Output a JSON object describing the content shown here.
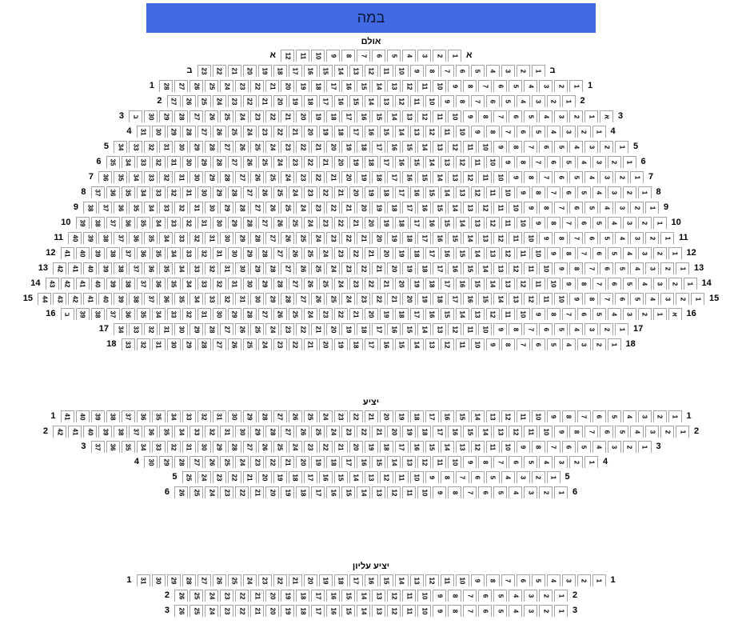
{
  "stage": {
    "label": "במה"
  },
  "colors": {
    "stage_bg": "#4169e1",
    "stage_text": "#0a1838",
    "seat_border": "#a3a3a3"
  },
  "sections": [
    {
      "title": "אולם",
      "rows": [
        {
          "label": "א",
          "seats": [
            12,
            11,
            10,
            9,
            8,
            7,
            6,
            5,
            4,
            3,
            2,
            1
          ]
        },
        {
          "label": "ב",
          "seats": [
            23,
            22,
            21,
            20,
            19,
            18,
            17,
            16,
            15,
            14,
            13,
            12,
            11,
            10,
            9,
            8,
            7,
            6,
            5,
            4,
            3,
            2,
            1
          ]
        },
        {
          "label": "1",
          "seats": [
            28,
            27,
            26,
            25,
            24,
            23,
            22,
            21,
            20,
            19,
            18,
            17,
            16,
            15,
            14,
            13,
            12,
            11,
            10,
            9,
            8,
            7,
            6,
            5,
            4,
            3,
            2,
            1
          ]
        },
        {
          "label": "2",
          "seats": [
            27,
            26,
            25,
            24,
            23,
            22,
            21,
            20,
            19,
            18,
            17,
            16,
            15,
            14,
            13,
            12,
            11,
            10,
            9,
            8,
            7,
            6,
            5,
            4,
            3,
            2,
            1
          ]
        },
        {
          "label": "3",
          "seats": [
            "ב",
            30,
            29,
            28,
            27,
            26,
            25,
            24,
            23,
            22,
            21,
            20,
            19,
            18,
            17,
            16,
            15,
            14,
            13,
            12,
            11,
            10,
            9,
            8,
            7,
            6,
            5,
            4,
            3,
            2,
            1,
            "א"
          ]
        },
        {
          "label": "4",
          "seats": [
            31,
            30,
            29,
            28,
            27,
            26,
            25,
            24,
            23,
            22,
            21,
            20,
            19,
            18,
            17,
            16,
            15,
            14,
            13,
            12,
            11,
            10,
            9,
            8,
            7,
            6,
            5,
            4,
            3,
            2,
            1
          ]
        },
        {
          "label": "5",
          "seats": [
            34,
            33,
            32,
            31,
            30,
            29,
            28,
            27,
            26,
            25,
            24,
            23,
            22,
            21,
            20,
            19,
            18,
            17,
            16,
            15,
            14,
            13,
            12,
            11,
            10,
            9,
            8,
            7,
            6,
            5,
            4,
            3,
            2,
            1
          ]
        },
        {
          "label": "6",
          "seats": [
            35,
            34,
            33,
            32,
            31,
            30,
            29,
            28,
            27,
            26,
            25,
            24,
            23,
            22,
            21,
            20,
            19,
            18,
            17,
            16,
            15,
            14,
            13,
            12,
            11,
            10,
            9,
            8,
            7,
            6,
            5,
            4,
            3,
            2,
            1
          ]
        },
        {
          "label": "7",
          "seats": [
            36,
            35,
            34,
            33,
            32,
            31,
            30,
            29,
            28,
            27,
            26,
            25,
            24,
            23,
            22,
            21,
            20,
            19,
            18,
            17,
            16,
            15,
            14,
            13,
            12,
            11,
            10,
            9,
            8,
            7,
            6,
            5,
            4,
            3,
            2,
            1
          ]
        },
        {
          "label": "8",
          "seats": [
            37,
            36,
            35,
            34,
            33,
            32,
            31,
            30,
            29,
            28,
            27,
            26,
            25,
            24,
            23,
            22,
            21,
            20,
            19,
            18,
            17,
            16,
            15,
            14,
            13,
            12,
            11,
            10,
            9,
            8,
            7,
            6,
            5,
            4,
            3,
            2,
            1
          ]
        },
        {
          "label": "9",
          "seats": [
            38,
            37,
            36,
            35,
            34,
            33,
            32,
            31,
            30,
            29,
            28,
            27,
            26,
            25,
            24,
            23,
            22,
            21,
            20,
            19,
            18,
            17,
            16,
            15,
            14,
            13,
            12,
            11,
            10,
            9,
            8,
            7,
            6,
            5,
            4,
            3,
            2,
            1
          ]
        },
        {
          "label": "10",
          "seats": [
            39,
            38,
            37,
            36,
            35,
            34,
            33,
            32,
            31,
            30,
            29,
            28,
            27,
            26,
            25,
            24,
            23,
            22,
            21,
            20,
            19,
            18,
            17,
            16,
            15,
            14,
            13,
            12,
            11,
            10,
            9,
            8,
            7,
            6,
            5,
            4,
            3,
            2,
            1
          ]
        },
        {
          "label": "11",
          "seats": [
            40,
            39,
            38,
            37,
            36,
            35,
            34,
            33,
            32,
            31,
            30,
            29,
            28,
            27,
            26,
            25,
            24,
            23,
            22,
            21,
            20,
            19,
            18,
            17,
            16,
            15,
            14,
            13,
            12,
            11,
            10,
            9,
            8,
            7,
            6,
            5,
            4,
            3,
            2,
            1
          ]
        },
        {
          "label": "12",
          "seats": [
            41,
            40,
            39,
            38,
            37,
            36,
            35,
            34,
            33,
            32,
            31,
            30,
            29,
            28,
            27,
            26,
            25,
            24,
            23,
            22,
            21,
            20,
            19,
            18,
            17,
            16,
            15,
            14,
            13,
            12,
            11,
            10,
            9,
            8,
            7,
            6,
            5,
            4,
            3,
            2,
            1
          ]
        },
        {
          "label": "13",
          "seats": [
            42,
            41,
            40,
            39,
            38,
            37,
            36,
            35,
            34,
            33,
            32,
            31,
            30,
            29,
            28,
            27,
            26,
            25,
            24,
            23,
            22,
            21,
            20,
            19,
            18,
            17,
            16,
            15,
            14,
            13,
            12,
            11,
            10,
            9,
            8,
            7,
            6,
            5,
            4,
            3,
            2,
            1
          ]
        },
        {
          "label": "14",
          "seats": [
            43,
            42,
            41,
            40,
            39,
            38,
            37,
            36,
            35,
            34,
            33,
            32,
            31,
            30,
            29,
            28,
            27,
            26,
            25,
            24,
            23,
            22,
            21,
            20,
            19,
            18,
            17,
            16,
            15,
            14,
            13,
            12,
            11,
            10,
            9,
            8,
            7,
            6,
            5,
            4,
            3,
            2,
            1
          ]
        },
        {
          "label": "15",
          "seats": [
            44,
            43,
            42,
            41,
            40,
            39,
            38,
            37,
            36,
            35,
            34,
            33,
            32,
            31,
            30,
            29,
            28,
            27,
            26,
            25,
            24,
            23,
            22,
            21,
            20,
            19,
            18,
            17,
            16,
            15,
            14,
            13,
            12,
            11,
            10,
            9,
            8,
            7,
            6,
            5,
            4,
            3,
            2,
            1
          ]
        },
        {
          "label": "16",
          "seats": [
            "ב",
            39,
            38,
            37,
            36,
            35,
            34,
            33,
            32,
            31,
            30,
            29,
            28,
            27,
            26,
            25,
            24,
            23,
            22,
            21,
            20,
            19,
            18,
            17,
            16,
            15,
            14,
            13,
            12,
            11,
            10,
            9,
            8,
            7,
            6,
            5,
            4,
            3,
            2,
            1,
            "א"
          ]
        },
        {
          "label": "17",
          "seats": [
            34,
            33,
            32,
            31,
            30,
            29,
            28,
            27,
            26,
            25,
            24,
            23,
            22,
            21,
            20,
            19,
            18,
            17,
            16,
            15,
            14,
            13,
            12,
            11,
            10,
            9,
            8,
            7,
            6,
            5,
            4,
            3,
            2,
            1
          ]
        },
        {
          "label": "18",
          "seats": [
            33,
            32,
            31,
            30,
            29,
            28,
            27,
            26,
            25,
            24,
            23,
            22,
            21,
            20,
            19,
            18,
            17,
            16,
            15,
            14,
            13,
            12,
            11,
            10,
            9,
            8,
            7,
            6,
            5,
            4,
            3,
            2,
            1
          ]
        }
      ]
    },
    {
      "title": "יציע",
      "rows": [
        {
          "label": "1",
          "seats": [
            41,
            40,
            39,
            38,
            37,
            36,
            35,
            34,
            33,
            32,
            31,
            30,
            29,
            28,
            27,
            26,
            25,
            24,
            23,
            22,
            21,
            20,
            19,
            18,
            17,
            16,
            15,
            14,
            13,
            12,
            11,
            10,
            9,
            8,
            7,
            6,
            5,
            4,
            3,
            2,
            1
          ]
        },
        {
          "label": "2",
          "seats": [
            42,
            41,
            40,
            39,
            38,
            37,
            36,
            35,
            34,
            33,
            32,
            31,
            30,
            29,
            28,
            27,
            26,
            25,
            24,
            23,
            22,
            21,
            20,
            19,
            18,
            17,
            16,
            15,
            14,
            13,
            12,
            11,
            10,
            9,
            8,
            7,
            6,
            5,
            4,
            3,
            2,
            1
          ]
        },
        {
          "label": "3",
          "seats": [
            37,
            36,
            35,
            34,
            33,
            32,
            31,
            30,
            29,
            28,
            27,
            26,
            25,
            24,
            23,
            22,
            21,
            20,
            19,
            18,
            17,
            16,
            15,
            14,
            13,
            12,
            11,
            10,
            9,
            8,
            7,
            6,
            5,
            4,
            3,
            2,
            1
          ]
        },
        {
          "label": "4",
          "seats": [
            30,
            29,
            28,
            27,
            26,
            25,
            24,
            23,
            22,
            21,
            20,
            19,
            18,
            17,
            16,
            15,
            14,
            13,
            12,
            11,
            10,
            9,
            8,
            7,
            6,
            5,
            4,
            3,
            2,
            1
          ]
        },
        {
          "label": "5",
          "seats": [
            25,
            24,
            23,
            22,
            21,
            20,
            19,
            18,
            17,
            16,
            15,
            14,
            13,
            12,
            11,
            10,
            9,
            8,
            7,
            6,
            5,
            4,
            3,
            2,
            1
          ]
        },
        {
          "label": "6",
          "seats": [
            26,
            25,
            24,
            23,
            22,
            21,
            20,
            19,
            18,
            17,
            16,
            15,
            14,
            13,
            12,
            11,
            10,
            9,
            8,
            7,
            6,
            5,
            4,
            3,
            2,
            1
          ]
        }
      ]
    },
    {
      "title": "יציע עליון",
      "rows": [
        {
          "label": "1",
          "seats": [
            31,
            30,
            29,
            28,
            27,
            26,
            25,
            24,
            23,
            22,
            21,
            20,
            19,
            18,
            17,
            16,
            15,
            14,
            13,
            12,
            11,
            10,
            9,
            8,
            7,
            6,
            5,
            4,
            3,
            2,
            1
          ]
        },
        {
          "label": "2",
          "seats": [
            26,
            25,
            24,
            23,
            22,
            21,
            20,
            19,
            18,
            17,
            16,
            15,
            14,
            13,
            12,
            11,
            10,
            9,
            8,
            7,
            6,
            5,
            4,
            3,
            2,
            1
          ]
        },
        {
          "label": "3",
          "seats": [
            26,
            25,
            24,
            23,
            22,
            21,
            20,
            19,
            18,
            17,
            16,
            15,
            14,
            13,
            12,
            11,
            10,
            9,
            8,
            7,
            6,
            5,
            4,
            3,
            2,
            1
          ]
        }
      ]
    }
  ]
}
